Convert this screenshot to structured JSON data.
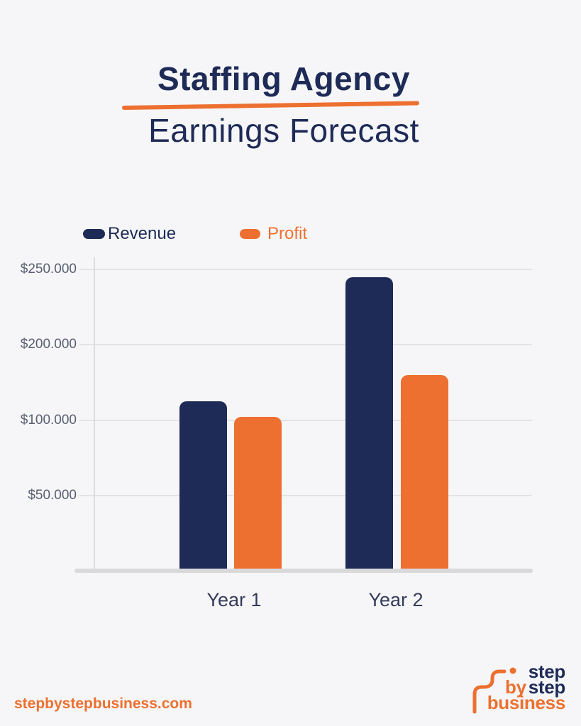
{
  "colors": {
    "navy": "#1e2b57",
    "orange": "#ed7030",
    "bg": "#f6f6f8",
    "grid": "#e3e3e6",
    "axis": "#dcdce0",
    "baseline": "#d9d9dc",
    "tick": "#5a5f72",
    "xlabel": "#343c5b"
  },
  "title": {
    "line1": "Staffing Agency",
    "line2": "Earnings Forecast"
  },
  "chart_data": {
    "type": "bar",
    "title": "Staffing Agency Earnings Forecast",
    "categories": [
      "Year 1",
      "Year 2"
    ],
    "series": [
      {
        "name": "Revenue",
        "color": "#1e2b57",
        "values": [
          125000,
          245000
        ]
      },
      {
        "name": "Profit",
        "color": "#ed7030",
        "values": [
          105000,
          160000
        ]
      }
    ],
    "y_ticks": [
      {
        "label": "$250.000",
        "value": 250000
      },
      {
        "label": "$200.000",
        "value": 200000
      },
      {
        "label": "$100.000",
        "value": 100000
      },
      {
        "label": "$50.000",
        "value": 50000
      }
    ],
    "ylim": [
      0,
      250000
    ],
    "grid": true,
    "legend_position": "top-left"
  },
  "footer": {
    "website": "stepbystepbusiness.com",
    "logo": {
      "step_top": "step",
      "by": "by",
      "step_mid": "step",
      "business": "business"
    }
  }
}
